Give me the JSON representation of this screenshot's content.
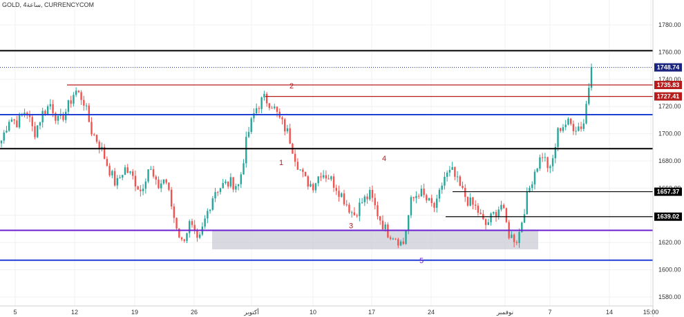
{
  "chart_data": {
    "type": "candlestick",
    "title": "GOLD, 4ساعة, CURRENCYCOM",
    "ylim": [
      1575,
      1800
    ],
    "y_ticks": [
      1580,
      1600,
      1620,
      1640,
      1660,
      1680,
      1700,
      1720,
      1740,
      1760,
      1780
    ],
    "y_tick_labels": [
      "1580.00",
      "1600.00",
      "1620.00",
      "1640.00",
      "1660.00",
      "1680.00",
      "1700.00",
      "1720.00",
      "1740.00",
      "1760.00",
      "1780.00"
    ],
    "x_ticks": [
      "5",
      "12",
      "19",
      "26",
      "أكتوبر",
      "10",
      "17",
      "24",
      "نوفمبر",
      "7",
      "14",
      "15:00"
    ],
    "price_points": [
      1695,
      1712,
      1708,
      1718,
      1700,
      1715,
      1722,
      1708,
      1718,
      1732,
      1725,
      1702,
      1692,
      1676,
      1662,
      1675,
      1668,
      1658,
      1676,
      1660,
      1668,
      1640,
      1620,
      1634,
      1618,
      1640,
      1658,
      1662,
      1664,
      1662,
      1698,
      1718,
      1726,
      1722,
      1710,
      1700,
      1680,
      1666,
      1662,
      1672,
      1668,
      1660,
      1650,
      1640,
      1650,
      1655,
      1640,
      1628,
      1625,
      1618,
      1650,
      1658,
      1650,
      1645,
      1668,
      1672,
      1660,
      1650,
      1645,
      1632,
      1640,
      1648,
      1625,
      1622,
      1650,
      1672,
      1685,
      1672,
      1704,
      1708,
      1705,
      1706,
      1748.74
    ],
    "horizontal_levels": [
      {
        "name": "black-1761",
        "value": 1761,
        "color": "#000000"
      },
      {
        "name": "red-2",
        "value": 1735.83,
        "color": "#b71c1c",
        "label": "1735.83"
      },
      {
        "name": "red-1727",
        "value": 1727.41,
        "color": "#b71c1c",
        "label": "1727.41"
      },
      {
        "name": "blue-1714",
        "value": 1714,
        "color": "#1e3fd6"
      },
      {
        "name": "black-1689",
        "value": 1689,
        "color": "#000000"
      },
      {
        "name": "black-1657",
        "value": 1657.37,
        "color": "#000000",
        "label": "1657.37"
      },
      {
        "name": "black-1639",
        "value": 1639.02,
        "color": "#000000",
        "label": "1639.02"
      },
      {
        "name": "purple-1629",
        "value": 1629,
        "color": "#6a1fd1"
      },
      {
        "name": "blue-1607",
        "value": 1607,
        "color": "#1e3fd6"
      }
    ],
    "current_price": {
      "value": 1748.74,
      "label": "1748.74",
      "color": "#1a237e"
    },
    "zone": {
      "from": 1615,
      "to": 1629
    },
    "annotations": [
      {
        "text": "1",
        "color": "#b71c1c"
      },
      {
        "text": "2",
        "color": "#b71c1c"
      },
      {
        "text": "3",
        "color": "#b71c1c"
      },
      {
        "text": "4",
        "color": "#b71c1c"
      },
      {
        "text": "5",
        "color": "#6a1fd1"
      }
    ],
    "colors": {
      "up": "#26a69a",
      "down": "#ef5350"
    }
  }
}
